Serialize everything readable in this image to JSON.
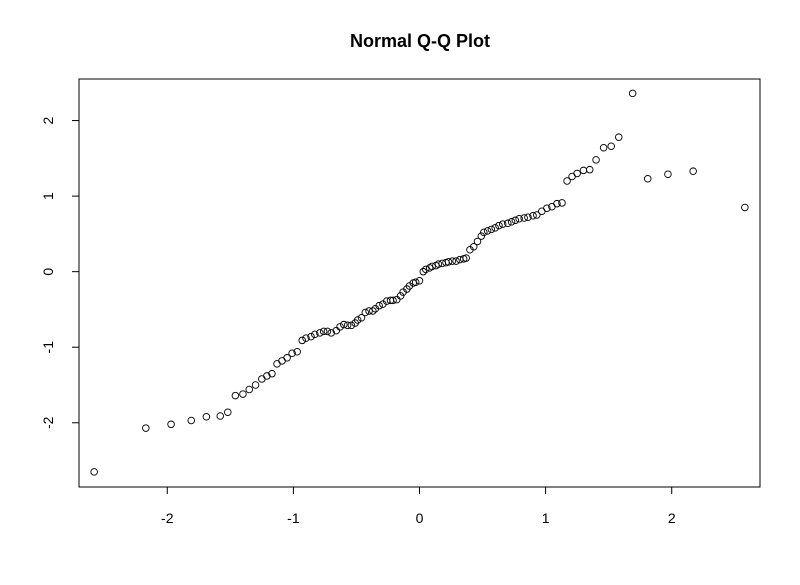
{
  "chart_data": {
    "type": "scatter",
    "title": "Normal Q-Q Plot",
    "xlabel": "",
    "ylabel": "",
    "xlim": [
      -2.7,
      2.7
    ],
    "ylim": [
      -2.85,
      2.55
    ],
    "x_ticks": [
      -2,
      -1,
      0,
      1,
      2
    ],
    "x_tick_labels": [
      "-2",
      "-1",
      "0",
      "1",
      "2"
    ],
    "y_ticks": [
      -2,
      -1,
      0,
      1,
      2
    ],
    "y_tick_labels": [
      "-2",
      "-1",
      "0",
      "1",
      "2"
    ],
    "marker": "open-circle",
    "grid": false,
    "x": [
      -2.58,
      -2.17,
      -1.97,
      -1.81,
      -1.69,
      -1.58,
      -1.52,
      -1.46,
      -1.4,
      -1.35,
      -1.3,
      -1.25,
      -1.21,
      -1.17,
      -1.13,
      -1.09,
      -1.05,
      -1.01,
      -0.97,
      -0.93,
      -0.9,
      -0.86,
      -0.83,
      -0.79,
      -0.76,
      -0.73,
      -0.7,
      -0.66,
      -0.63,
      -0.6,
      -0.57,
      -0.54,
      -0.51,
      -0.49,
      -0.46,
      -0.43,
      -0.4,
      -0.37,
      -0.35,
      -0.32,
      -0.29,
      -0.26,
      -0.23,
      -0.21,
      -0.18,
      -0.15,
      -0.13,
      -0.1,
      -0.08,
      -0.05,
      -0.03,
      0.0,
      0.03,
      0.05,
      0.08,
      0.1,
      0.13,
      0.15,
      0.18,
      0.21,
      0.23,
      0.26,
      0.29,
      0.32,
      0.35,
      0.37,
      0.4,
      0.43,
      0.46,
      0.49,
      0.51,
      0.54,
      0.57,
      0.6,
      0.63,
      0.66,
      0.7,
      0.73,
      0.76,
      0.79,
      0.83,
      0.86,
      0.9,
      0.93,
      0.97,
      1.01,
      1.05,
      1.09,
      1.13,
      1.17,
      1.21,
      1.25,
      1.3,
      1.35,
      1.4,
      1.46,
      1.52,
      1.58,
      1.69,
      1.81,
      1.97,
      2.17,
      2.58
    ],
    "y": [
      -2.65,
      -2.07,
      -2.02,
      -1.97,
      -1.92,
      -1.91,
      -1.86,
      -1.64,
      -1.62,
      -1.56,
      -1.5,
      -1.42,
      -1.38,
      -1.35,
      -1.22,
      -1.18,
      -1.14,
      -1.08,
      -1.06,
      -0.91,
      -0.88,
      -0.86,
      -0.83,
      -0.81,
      -0.79,
      -0.79,
      -0.81,
      -0.78,
      -0.73,
      -0.7,
      -0.71,
      -0.71,
      -0.68,
      -0.64,
      -0.61,
      -0.54,
      -0.52,
      -0.52,
      -0.49,
      -0.45,
      -0.43,
      -0.39,
      -0.38,
      -0.38,
      -0.37,
      -0.32,
      -0.27,
      -0.23,
      -0.19,
      -0.15,
      -0.14,
      -0.12,
      0.0,
      0.03,
      0.05,
      0.07,
      0.08,
      0.1,
      0.11,
      0.12,
      0.13,
      0.14,
      0.14,
      0.16,
      0.17,
      0.18,
      0.29,
      0.33,
      0.4,
      0.47,
      0.52,
      0.54,
      0.56,
      0.58,
      0.61,
      0.63,
      0.64,
      0.66,
      0.68,
      0.7,
      0.71,
      0.72,
      0.74,
      0.75,
      0.8,
      0.84,
      0.86,
      0.9,
      0.91,
      1.2,
      1.26,
      1.3,
      1.34,
      1.35,
      1.48,
      1.64,
      1.66,
      1.78,
      2.36,
      1.23,
      1.29,
      1.33,
      0.85
    ]
  }
}
